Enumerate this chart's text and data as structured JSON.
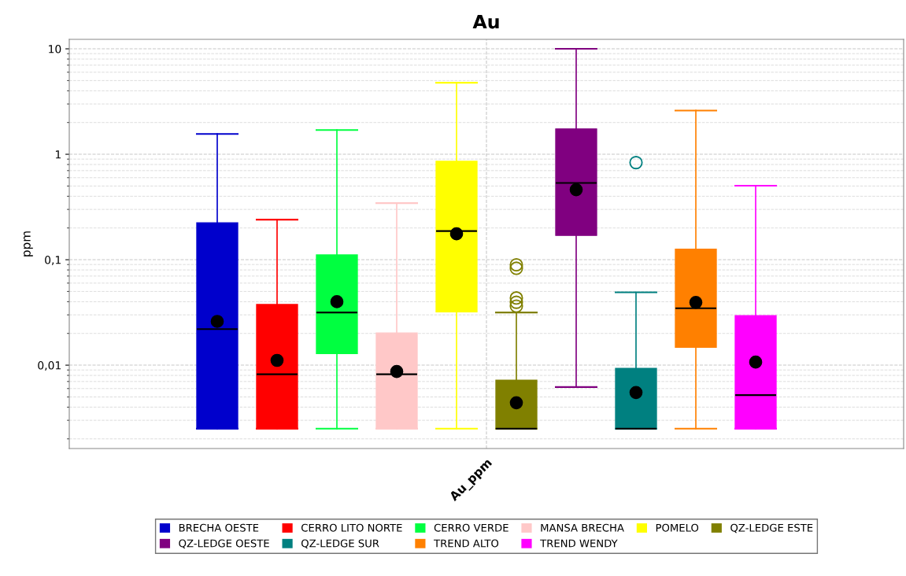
{
  "chart_data": {
    "type": "box",
    "title": "Au",
    "ylabel": "ppm",
    "categories": [
      "Au_ppm"
    ],
    "log": "y",
    "ylim": [
      0.00162,
      12.3
    ],
    "yticks": [
      {
        "value": 0.01,
        "label": "0,01"
      },
      {
        "value": 0.1,
        "label": "0,1"
      },
      {
        "value": 1,
        "label": "1"
      },
      {
        "value": 10,
        "label": "10"
      }
    ],
    "grid": true,
    "legend": "bottom",
    "marker": "circle",
    "series": [
      {
        "name": "BRECHA OESTE",
        "color": "#0000cc",
        "boxes": [
          {
            "low": 0.0025,
            "q1": 0.0025,
            "median": 0.022,
            "q3": 0.224,
            "high": 1.56,
            "mean": 0.026
          }
        ]
      },
      {
        "name": "CERRO LITO NORTE",
        "color": "#ff0000",
        "boxes": [
          {
            "low": 0.0025,
            "q1": 0.0025,
            "median": 0.0082,
            "q3": 0.0376,
            "high": 0.24,
            "mean": 0.0111
          }
        ]
      },
      {
        "name": "CERRO VERDE",
        "color": "#00ff40",
        "boxes": [
          {
            "low": 0.0025,
            "q1": 0.0129,
            "median": 0.0316,
            "q3": 0.111,
            "high": 1.7,
            "mean": 0.04
          }
        ]
      },
      {
        "name": "MANSA BRECHA",
        "color": "#ffc8c8",
        "boxes": [
          {
            "low": 0.0025,
            "q1": 0.0025,
            "median": 0.0082,
            "q3": 0.0202,
            "high": 0.344,
            "mean": 0.0087
          }
        ]
      },
      {
        "name": "POMELO",
        "color": "#ffff00",
        "boxes": [
          {
            "low": 0.0025,
            "q1": 0.032,
            "median": 0.187,
            "q3": 0.857,
            "high": 4.77,
            "mean": 0.176
          }
        ]
      },
      {
        "name": "QZ-LEDGE ESTE",
        "color": "#808000",
        "boxes": [
          {
            "low": 0.0025,
            "q1": 0.0025,
            "median": 0.0025,
            "q3": 0.0072,
            "high": 0.0316,
            "mean": 0.0044,
            "outliers": [
              0.0896,
              0.083,
              0.0434,
              0.0395,
              0.0363
            ]
          }
        ]
      },
      {
        "name": "QZ-LEDGE OESTE",
        "color": "#800080",
        "boxes": [
          {
            "low": 0.0062,
            "q1": 0.17,
            "median": 0.535,
            "q3": 1.74,
            "high": 10,
            "mean": 0.461
          }
        ]
      },
      {
        "name": "QZ-LEDGE SUR",
        "color": "#008080",
        "boxes": [
          {
            "low": 0.0025,
            "q1": 0.0025,
            "median": 0.0025,
            "q3": 0.0093,
            "high": 0.049,
            "mean": 0.0055,
            "outliers": [
              0.834
            ]
          }
        ]
      },
      {
        "name": "TREND ALTO",
        "color": "#ff8000",
        "boxes": [
          {
            "low": 0.0025,
            "q1": 0.0148,
            "median": 0.0346,
            "q3": 0.126,
            "high": 2.6,
            "mean": 0.0394
          }
        ]
      },
      {
        "name": "TREND WENDY",
        "color": "#ff00ff",
        "boxes": [
          {
            "low": 0.0025,
            "q1": 0.0025,
            "median": 0.0052,
            "q3": 0.0295,
            "high": 0.503,
            "mean": 0.0107
          }
        ]
      }
    ]
  }
}
